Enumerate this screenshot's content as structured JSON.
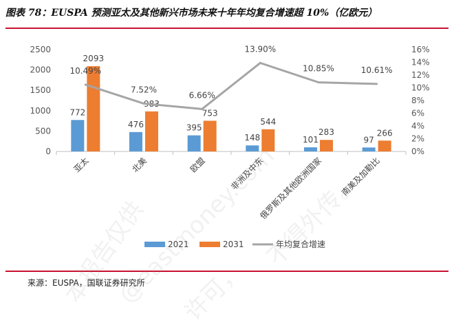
{
  "title": "图表 78：EUSPA 预测亚太及其他新兴市场未来十年年均复合增速超 10%（亿欧元）",
  "source": "来源：EUSPA，国联证券研究所",
  "watermarks": [
    "本报告仅供",
    "@eastmoney.com",
    "不得外传。",
    "许可，"
  ],
  "colors": {
    "series2021": "#5b9bd5",
    "series2031": "#ed7d31",
    "cagr": "#a5a5a5",
    "accent": "#c8102e"
  },
  "chart_data": {
    "type": "bar",
    "categories": [
      "亚太",
      "北美",
      "欧盟",
      "非洲及中东",
      "俄罗斯及其他欧洲国家",
      "南美及加勒比"
    ],
    "series": [
      {
        "name": "2021",
        "type": "bar",
        "axis": "left",
        "values": [
          772,
          476,
          395,
          148,
          101,
          97
        ]
      },
      {
        "name": "2031",
        "type": "bar",
        "axis": "left",
        "values": [
          2093,
          983,
          753,
          544,
          283,
          266
        ]
      },
      {
        "name": "年均复合增速",
        "type": "line",
        "axis": "right",
        "values": [
          10.49,
          7.52,
          6.66,
          13.9,
          10.85,
          10.61
        ]
      }
    ],
    "point_labels": [
      "10.49%",
      "7.52%",
      "6.66%",
      "13.90%",
      "10.85%",
      "10.61%"
    ],
    "ylim": [
      0,
      2500
    ],
    "yticks": [
      "0",
      "500",
      "1000",
      "1500",
      "2000",
      "2500"
    ],
    "y2lim": [
      0,
      16
    ],
    "y2ticks": [
      "0%",
      "2%",
      "4%",
      "6%",
      "8%",
      "10%",
      "12%",
      "14%",
      "16%"
    ],
    "legend": {
      "position": "bottom",
      "labels": [
        "2021",
        "2031",
        "年均复合增速"
      ]
    },
    "grid": false
  }
}
